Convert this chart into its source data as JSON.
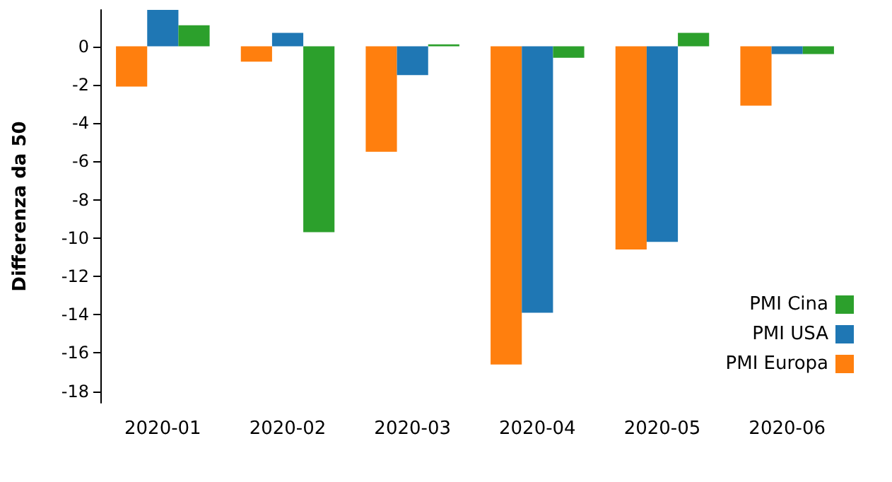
{
  "chart_data": {
    "type": "bar",
    "ylabel": "Differenza da 50",
    "categories": [
      "2020-01",
      "2020-02",
      "2020-03",
      "2020-04",
      "2020-05",
      "2020-06"
    ],
    "series": [
      {
        "name": "PMI Europa",
        "color": "#ff7f0e",
        "values": [
          -2.1,
          -0.8,
          -5.5,
          -16.6,
          -10.6,
          -3.1
        ]
      },
      {
        "name": "PMI USA",
        "color": "#1f77b4",
        "values": [
          1.9,
          0.7,
          -1.5,
          -13.9,
          -10.2,
          -0.4
        ]
      },
      {
        "name": "PMI Cina",
        "color": "#2ca02c",
        "values": [
          1.1,
          -9.7,
          0.1,
          -0.6,
          0.7,
          -0.4
        ]
      }
    ],
    "ylim": [
      -18.6,
      1.9
    ],
    "yticks": [
      0,
      -2,
      -4,
      -6,
      -8,
      -10,
      -12,
      -14,
      -16,
      -18
    ],
    "grid": false,
    "legend": "bottom right"
  }
}
